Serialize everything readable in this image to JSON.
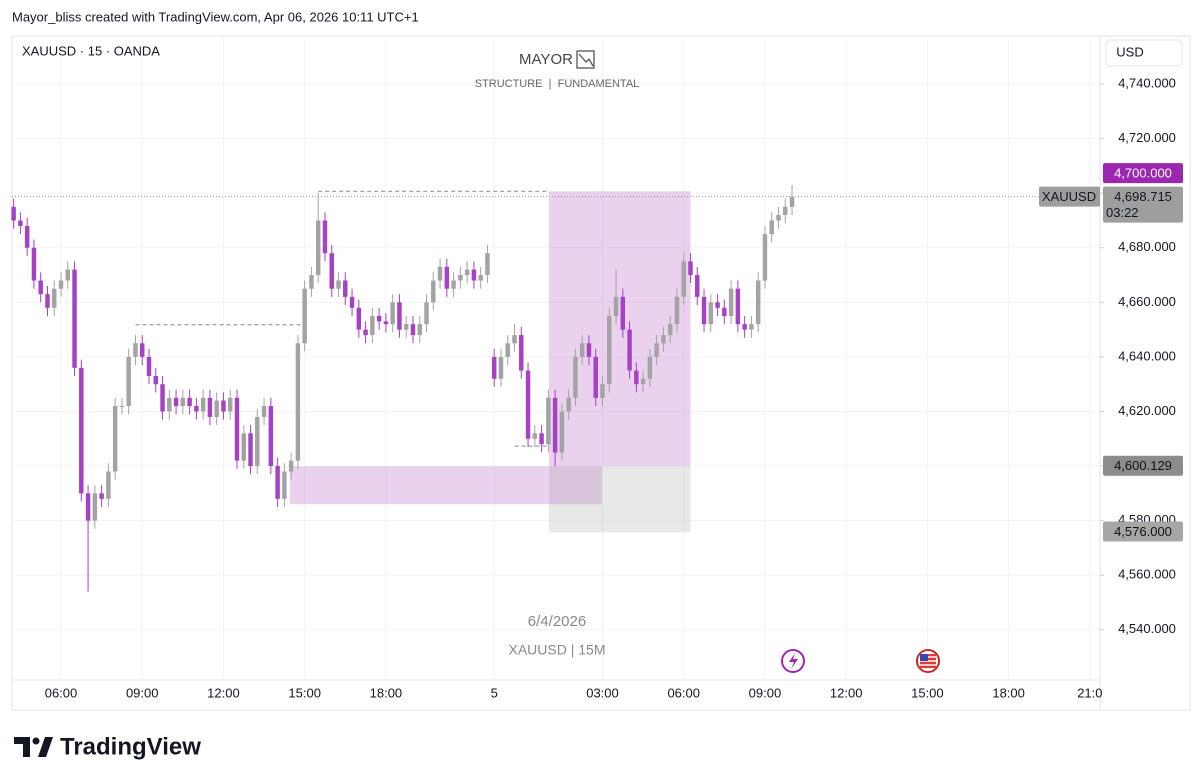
{
  "header": "Mayor_bliss created with TradingView.com, Apr 06, 2026 10:11 UTC+1",
  "footer_logo": "TradingView",
  "chart_data": {
    "type": "candlestick",
    "symbol": "XAUUSD · 15 · OANDA",
    "watermark_title": "MAYOR",
    "subtitle": "STRUCTURE  |  FUNDAMENTAL",
    "currency": "USD",
    "watermark_date": "6/4/2026",
    "watermark_label": "XAUUSD | 15M",
    "up_color": "#a3a3a3",
    "down_color": "#a640c4",
    "open": [
      4695,
      4690,
      4688,
      4680,
      4668,
      4663,
      4658,
      4665,
      4668,
      4672,
      4636,
      4590,
      4580,
      4590,
      4588,
      4598,
      4622,
      4622,
      4640,
      4645,
      4640,
      4633,
      4630,
      4620,
      4625,
      4622,
      4625,
      4622,
      4620,
      4625,
      4618,
      4624,
      4620,
      4625,
      4602,
      4612,
      4600,
      4618,
      4622,
      4600,
      4588,
      4598,
      4602,
      4645,
      4665,
      4670,
      4690,
      4678,
      4665,
      4668,
      4662,
      4658,
      4650,
      4648,
      4655,
      4653,
      4652,
      4660,
      4650,
      4652,
      4648,
      4652,
      4660,
      4668,
      4673,
      4665,
      4668,
      4670,
      4672,
      4668,
      4670,
      4640,
      4632,
      4640,
      4645,
      4648,
      4635,
      4610,
      4612,
      4608,
      4625,
      4605,
      4620,
      4625,
      4640,
      4645,
      4640,
      4625,
      4630,
      4655,
      4662,
      4650,
      4635,
      4630,
      4632,
      4640,
      4645,
      4648,
      4652,
      4662,
      4675,
      4670,
      4662,
      4652,
      4660,
      4658,
      4655,
      4665,
      4652,
      4650,
      4652,
      4668,
      4685,
      4690,
      4692,
      4695
    ],
    "high": [
      4698,
      4693,
      4691,
      4683,
      4671,
      4666,
      4668,
      4671,
      4675,
      4675,
      4639,
      4593,
      4593,
      4593,
      4601,
      4625,
      4625,
      4643,
      4648,
      4648,
      4643,
      4636,
      4633,
      4628,
      4628,
      4628,
      4628,
      4625,
      4628,
      4628,
      4627,
      4627,
      4628,
      4628,
      4615,
      4615,
      4621,
      4625,
      4625,
      4603,
      4601,
      4605,
      4648,
      4668,
      4673,
      4700,
      4693,
      4681,
      4671,
      4671,
      4665,
      4661,
      4653,
      4658,
      4658,
      4656,
      4663,
      4663,
      4655,
      4655,
      4655,
      4663,
      4671,
      4676,
      4676,
      4671,
      4673,
      4675,
      4675,
      4673,
      4681,
      4643,
      4643,
      4648,
      4652,
      4651,
      4638,
      4615,
      4615,
      4628,
      4628,
      4623,
      4628,
      4643,
      4648,
      4648,
      4643,
      4633,
      4658,
      4672,
      4665,
      4653,
      4638,
      4635,
      4643,
      4648,
      4651,
      4655,
      4665,
      4678,
      4678,
      4673,
      4665,
      4663,
      4663,
      4661,
      4668,
      4668,
      4655,
      4655,
      4671,
      4688,
      4693,
      4695,
      4698,
      4703
    ],
    "low": [
      4687,
      4685,
      4677,
      4665,
      4660,
      4655,
      4655,
      4662,
      4665,
      4633,
      4587,
      4554,
      4577,
      4585,
      4585,
      4595,
      4619,
      4619,
      4637,
      4637,
      4630,
      4627,
      4617,
      4617,
      4619,
      4619,
      4619,
      4617,
      4617,
      4615,
      4615,
      4617,
      4617,
      4599,
      4599,
      4597,
      4597,
      4615,
      4597,
      4585,
      4585,
      4595,
      4599,
      4642,
      4662,
      4667,
      4675,
      4662,
      4662,
      4659,
      4655,
      4647,
      4645,
      4645,
      4650,
      4649,
      4649,
      4647,
      4647,
      4645,
      4645,
      4649,
      4657,
      4665,
      4662,
      4662,
      4665,
      4667,
      4665,
      4665,
      4667,
      4629,
      4629,
      4637,
      4642,
      4632,
      4607,
      4607,
      4605,
      4605,
      4600,
      4602,
      4617,
      4622,
      4637,
      4637,
      4622,
      4622,
      4627,
      4652,
      4647,
      4632,
      4627,
      4627,
      4629,
      4637,
      4642,
      4645,
      4649,
      4659,
      4667,
      4659,
      4649,
      4649,
      4655,
      4652,
      4652,
      4649,
      4647,
      4647,
      4649,
      4665,
      4682,
      4687,
      4689,
      4692
    ],
    "close": [
      4690,
      4688,
      4680,
      4668,
      4663,
      4658,
      4665,
      4668,
      4672,
      4636,
      4590,
      4580,
      4590,
      4588,
      4598,
      4622,
      4622,
      4640,
      4645,
      4640,
      4633,
      4630,
      4620,
      4625,
      4622,
      4625,
      4622,
      4620,
      4625,
      4618,
      4624,
      4620,
      4625,
      4602,
      4612,
      4600,
      4618,
      4622,
      4600,
      4588,
      4598,
      4602,
      4645,
      4665,
      4670,
      4690,
      4678,
      4665,
      4668,
      4662,
      4658,
      4650,
      4648,
      4655,
      4653,
      4652,
      4660,
      4650,
      4652,
      4648,
      4652,
      4660,
      4668,
      4673,
      4665,
      4668,
      4670,
      4672,
      4668,
      4670,
      4678,
      4632,
      4640,
      4645,
      4648,
      4635,
      4610,
      4612,
      4608,
      4625,
      4605,
      4620,
      4625,
      4640,
      4645,
      4640,
      4625,
      4630,
      4655,
      4662,
      4650,
      4635,
      4630,
      4632,
      4640,
      4645,
      4648,
      4652,
      4662,
      4675,
      4670,
      4662,
      4652,
      4660,
      4658,
      4655,
      4665,
      4652,
      4650,
      4652,
      4668,
      4685,
      4690,
      4692,
      4695,
      4698.715
    ],
    "ylim": [
      4521.6,
      4757.6
    ],
    "yticks": [
      {
        "value": 4540,
        "label": "4,540.000"
      },
      {
        "value": 4560,
        "label": "4,560.000"
      },
      {
        "value": 4580,
        "label": "4,580.000"
      },
      {
        "value": 4600,
        "label": "4,600.000"
      },
      {
        "value": 4620,
        "label": "4,620.000"
      },
      {
        "value": 4640,
        "label": "4,640.000"
      },
      {
        "value": 4660,
        "label": "4,660.000"
      },
      {
        "value": 4680,
        "label": "4,680.000"
      },
      {
        "value": 4700,
        "label": "4,700.000"
      },
      {
        "value": 4720,
        "label": "4,720.000"
      },
      {
        "value": 4740,
        "label": "4,740.000"
      }
    ],
    "xlim": [
      -0.24,
      160.5
    ],
    "xticks": [
      {
        "value": 7,
        "label": "06:00"
      },
      {
        "value": 19,
        "label": "09:00"
      },
      {
        "value": 31,
        "label": "12:00"
      },
      {
        "value": 43,
        "label": "15:00"
      },
      {
        "value": 55,
        "label": "18:00"
      },
      {
        "value": 71,
        "label": "5"
      },
      {
        "value": 87,
        "label": "03:00"
      },
      {
        "value": 99,
        "label": "06:00"
      },
      {
        "value": 111,
        "label": "09:00"
      },
      {
        "value": 123,
        "label": "12:00"
      },
      {
        "value": 135,
        "label": "15:00"
      },
      {
        "value": 147,
        "label": "18:00"
      },
      {
        "value": 159,
        "label": "21:0"
      }
    ],
    "grid": true,
    "last_price": {
      "value": 4698.715,
      "label": "4,698.715",
      "symbol": "XAUUSD",
      "countdown": "03:22"
    },
    "price_labels": [
      {
        "value": 4700,
        "label": "4,700.000",
        "color": "#9c27b0"
      },
      {
        "value": 4600.129,
        "label": "4,600.129",
        "color": "#8c8c8c"
      },
      {
        "value": 4576,
        "label": "4,576.000",
        "color": "#a6a6a6"
      }
    ],
    "zones": [
      {
        "x": [
          79.1,
          100
        ],
        "y": [
          4600,
          4700.7
        ],
        "color": "rgba(186,104,200,0.3)"
      },
      {
        "x": [
          40.8,
          86.9
        ],
        "y": [
          4586,
          4599.9
        ],
        "color": "rgba(186,104,200,0.3)"
      },
      {
        "x": [
          79.1,
          100
        ],
        "y": [
          4575.7,
          4600
        ],
        "color": "rgba(150,150,150,0.22)"
      }
    ],
    "levels": [
      {
        "x": [
          45,
          79.1
        ],
        "value": 4700.7
      },
      {
        "x": [
          18,
          42.7
        ],
        "value": 4651.8
      },
      {
        "x": [
          74,
          79.1
        ],
        "value": 4607.3
      }
    ]
  }
}
